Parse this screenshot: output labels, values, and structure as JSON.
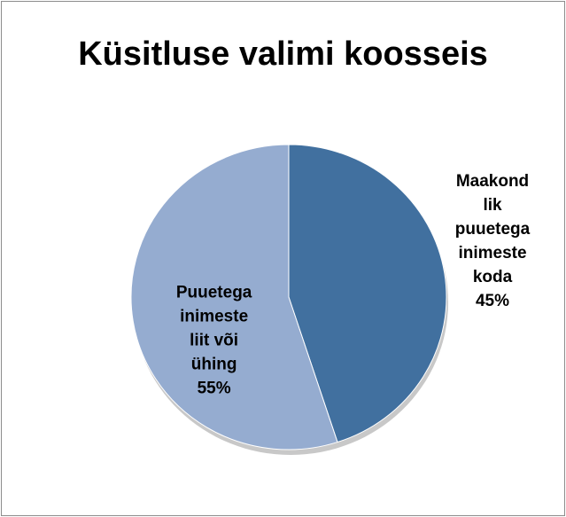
{
  "chart_data": {
    "type": "pie",
    "title": "Küsitluse valimi koosseis",
    "categories": [
      "Maakond lik puuetega inimeste koda",
      "Puuetega inimeste liit või ühing"
    ],
    "values": [
      45,
      55
    ],
    "value_labels": [
      "45%",
      "55%"
    ],
    "colors": [
      "#41709f",
      "#95acd0"
    ]
  }
}
